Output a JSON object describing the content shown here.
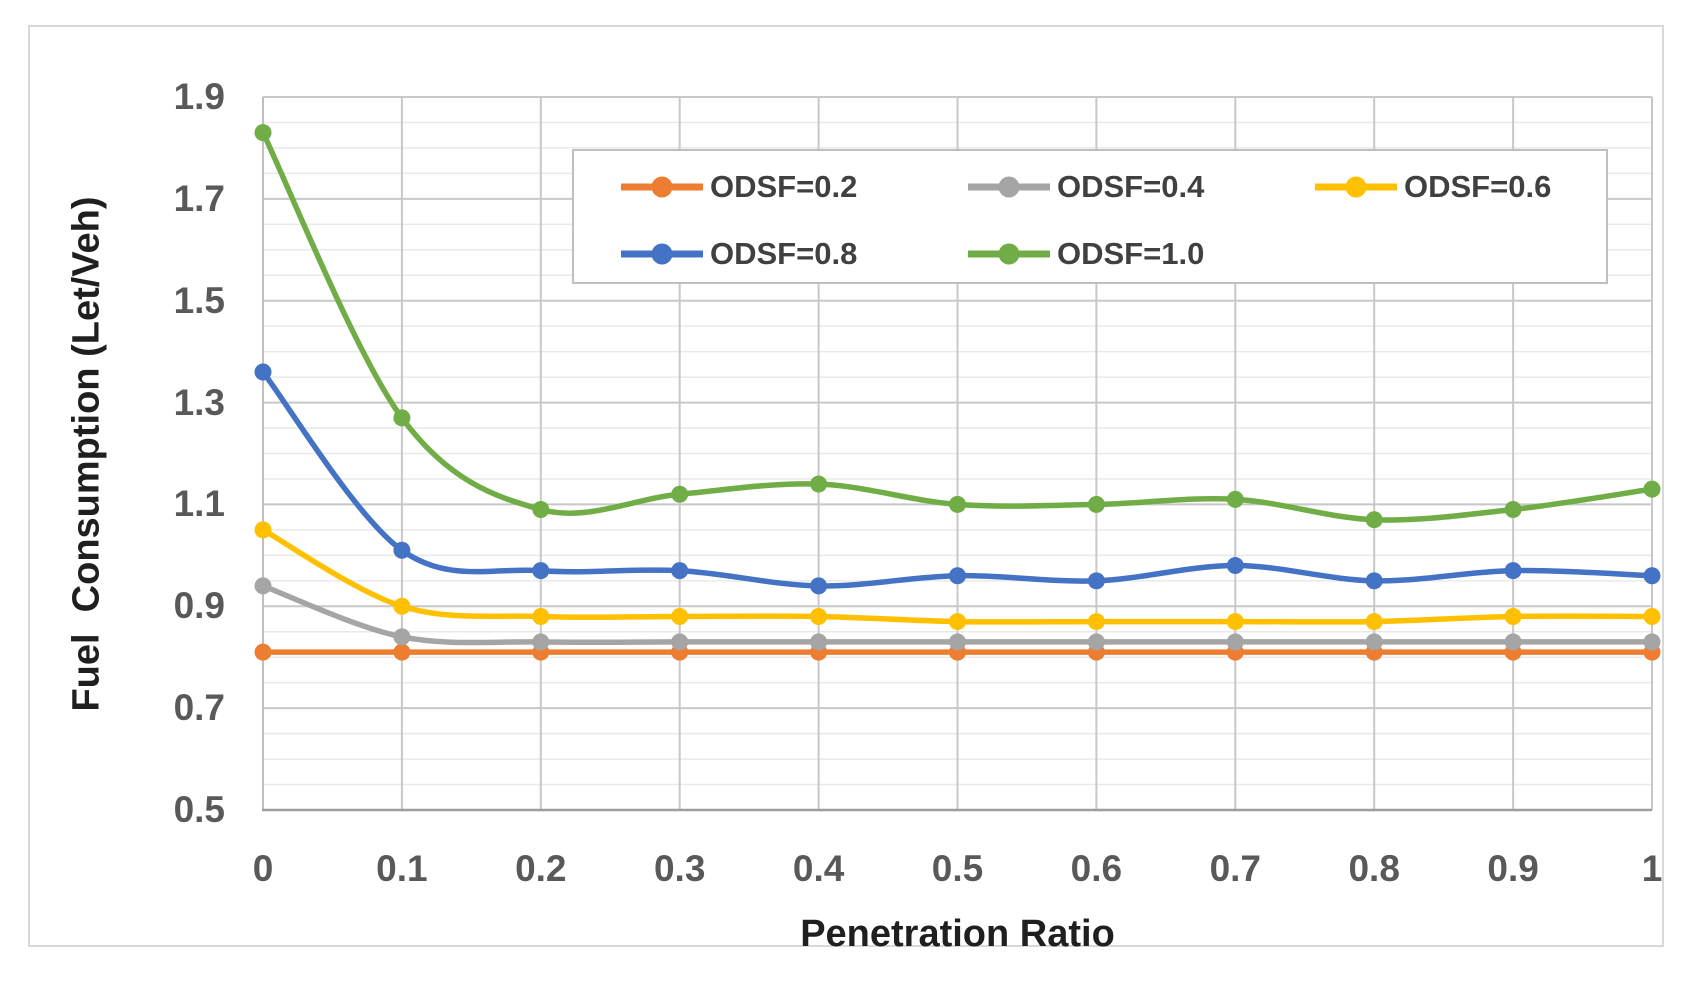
{
  "figure": {
    "background": "#FFFFFF",
    "border_color": "#D8D8D8"
  },
  "y_axis": {
    "title": "Fuel  Consumption (Let/Veh)",
    "tick_labels": [
      "1.9",
      "1.7",
      "1.5",
      "1.3",
      "1.1",
      "0.9",
      "0.7",
      "0.5"
    ],
    "min": 0.5,
    "max": 1.9,
    "major_step": 0.2,
    "minor_step": 0.05,
    "tick_color": "#595959",
    "title_color": "#1F1F1F"
  },
  "x_axis": {
    "title": "Penetration Ratio",
    "tick_labels": [
      "0",
      "0.1",
      "0.2",
      "0.3",
      "0.4",
      "0.5",
      "0.6",
      "0.7",
      "0.8",
      "0.9",
      "1"
    ],
    "tick_color": "#595959",
    "title_color": "#1F1F1F"
  },
  "legend": {
    "border_color": "#BFBFBF",
    "text_color": "#404040",
    "position": "top-center",
    "items": [
      "ODSF=0.2",
      "ODSF=0.4",
      "ODSF=0.6",
      "ODSF=0.8",
      "ODSF=1.0"
    ]
  },
  "chart_data": {
    "type": "line",
    "smooth": true,
    "title": "",
    "xlabel": "Penetration Ratio",
    "ylabel": "Fuel Consumption (Let/Veh)",
    "xlim": [
      0,
      1
    ],
    "ylim": [
      0.5,
      1.9
    ],
    "grid": true,
    "legend_position": "top-center",
    "x": [
      0,
      0.1,
      0.2,
      0.3,
      0.4,
      0.5,
      0.6,
      0.7,
      0.8,
      0.9,
      1.0
    ],
    "series": [
      {
        "name": "ODSF=0.2",
        "color": "#ED7D31",
        "values": [
          0.81,
          0.81,
          0.81,
          0.81,
          0.81,
          0.81,
          0.81,
          0.81,
          0.81,
          0.81,
          0.81
        ]
      },
      {
        "name": "ODSF=0.4",
        "color": "#A5A5A5",
        "values": [
          0.94,
          0.84,
          0.83,
          0.83,
          0.83,
          0.83,
          0.83,
          0.83,
          0.83,
          0.83,
          0.83
        ]
      },
      {
        "name": "ODSF=0.6",
        "color": "#FFC000",
        "values": [
          1.05,
          0.9,
          0.88,
          0.88,
          0.88,
          0.87,
          0.87,
          0.87,
          0.87,
          0.88,
          0.88
        ]
      },
      {
        "name": "ODSF=0.8",
        "color": "#4472C4",
        "values": [
          1.36,
          1.01,
          0.97,
          0.97,
          0.94,
          0.96,
          0.95,
          0.98,
          0.95,
          0.97,
          0.96
        ]
      },
      {
        "name": "ODSF=1.0",
        "color": "#70AD47",
        "values": [
          1.83,
          1.27,
          1.09,
          1.12,
          1.14,
          1.1,
          1.1,
          1.11,
          1.07,
          1.09,
          1.13
        ]
      }
    ]
  }
}
